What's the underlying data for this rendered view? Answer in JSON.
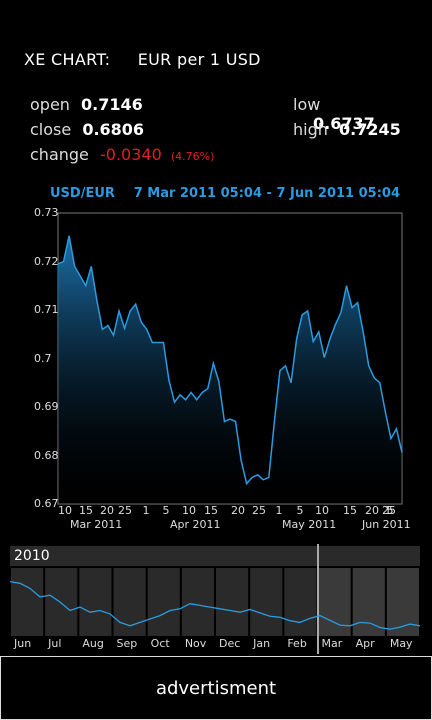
{
  "header": {
    "title_left": "XE CHART:",
    "title_right": "EUR per 1 USD"
  },
  "stats": {
    "open_label": "open",
    "open_value": "0.7146",
    "close_label": "close",
    "close_value": "0.6806",
    "change_label": "change",
    "change_value": "-0.0340",
    "change_pct": "(4.76%)",
    "low_label": "low",
    "low_value": "0.6737",
    "high_label": "high",
    "high_value": "0.7245"
  },
  "chart_data": {
    "type": "line",
    "pair": "USD/EUR",
    "range": "7 Mar 2011 05:04 - 7 Jun 2011 05:04",
    "y_ticks": [
      "0.73",
      "0.72",
      "0.71",
      "0.7",
      "0.69",
      "0.68",
      "0.67"
    ],
    "ylim": [
      0.67,
      0.73
    ],
    "x_day_ticks": [
      "10",
      "15",
      "20",
      "25",
      "1",
      "5",
      "10",
      "15",
      "20",
      "25",
      "1",
      "5",
      "10",
      "15",
      "20",
      "25",
      "1",
      "5"
    ],
    "x_month_labels": [
      "Mar 2011",
      "Apr 2011",
      "May 2011",
      "Jun 2011"
    ],
    "values": [
      0.7195,
      0.72,
      0.7253,
      0.719,
      0.717,
      0.715,
      0.719,
      0.712,
      0.706,
      0.7068,
      0.7048,
      0.7098,
      0.7062,
      0.7098,
      0.7112,
      0.7075,
      0.706,
      0.7033,
      0.7033,
      0.7033,
      0.6955,
      0.691,
      0.6925,
      0.6915,
      0.693,
      0.6915,
      0.693,
      0.6938,
      0.699,
      0.6952,
      0.687,
      0.6875,
      0.687,
      0.679,
      0.6742,
      0.6755,
      0.676,
      0.675,
      0.6755,
      0.687,
      0.6975,
      0.6985,
      0.695,
      0.704,
      0.709,
      0.7098,
      0.7035,
      0.7055,
      0.7002,
      0.704,
      0.707,
      0.7095,
      0.715,
      0.7105,
      0.7115,
      0.7055,
      0.6985,
      0.696,
      0.695,
      0.689,
      0.6835,
      0.6855,
      0.6806
    ],
    "color": "#2a9be0"
  },
  "timeline": {
    "year": "2010",
    "months": [
      "Jun",
      "Jul",
      "Aug",
      "Sep",
      "Oct",
      "Nov",
      "Dec",
      "Jan",
      "Feb",
      "Mar",
      "Apr",
      "May"
    ],
    "values": [
      0.82,
      0.815,
      0.8,
      0.775,
      0.78,
      0.76,
      0.735,
      0.745,
      0.73,
      0.735,
      0.725,
      0.7,
      0.69,
      0.7,
      0.71,
      0.72,
      0.735,
      0.74,
      0.755,
      0.75,
      0.745,
      0.74,
      0.735,
      0.73,
      0.738,
      0.728,
      0.718,
      0.715,
      0.705,
      0.7,
      0.712,
      0.72,
      0.706,
      0.692,
      0.69,
      0.7,
      0.698,
      0.685,
      0.68,
      0.686,
      0.695,
      0.69
    ]
  },
  "footer": {
    "ad_label": "advertisment"
  }
}
